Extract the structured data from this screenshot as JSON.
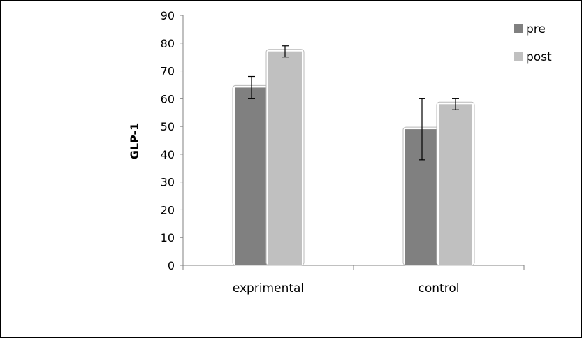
{
  "chart_data": {
    "type": "bar",
    "title": "",
    "xlabel": "",
    "ylabel": "GLP-1",
    "ylim": [
      0,
      90
    ],
    "yticks": [
      0,
      10,
      20,
      30,
      40,
      50,
      60,
      70,
      80,
      90
    ],
    "categories": [
      "exprimental",
      "control"
    ],
    "series": [
      {
        "name": "pre",
        "values": [
          64,
          49
        ],
        "errors": [
          4,
          11
        ],
        "color": "#808080"
      },
      {
        "name": "post",
        "values": [
          77,
          58
        ],
        "errors": [
          2,
          2
        ],
        "color": "#c0c0c0"
      }
    ],
    "grid": false,
    "legend": "top-right"
  }
}
